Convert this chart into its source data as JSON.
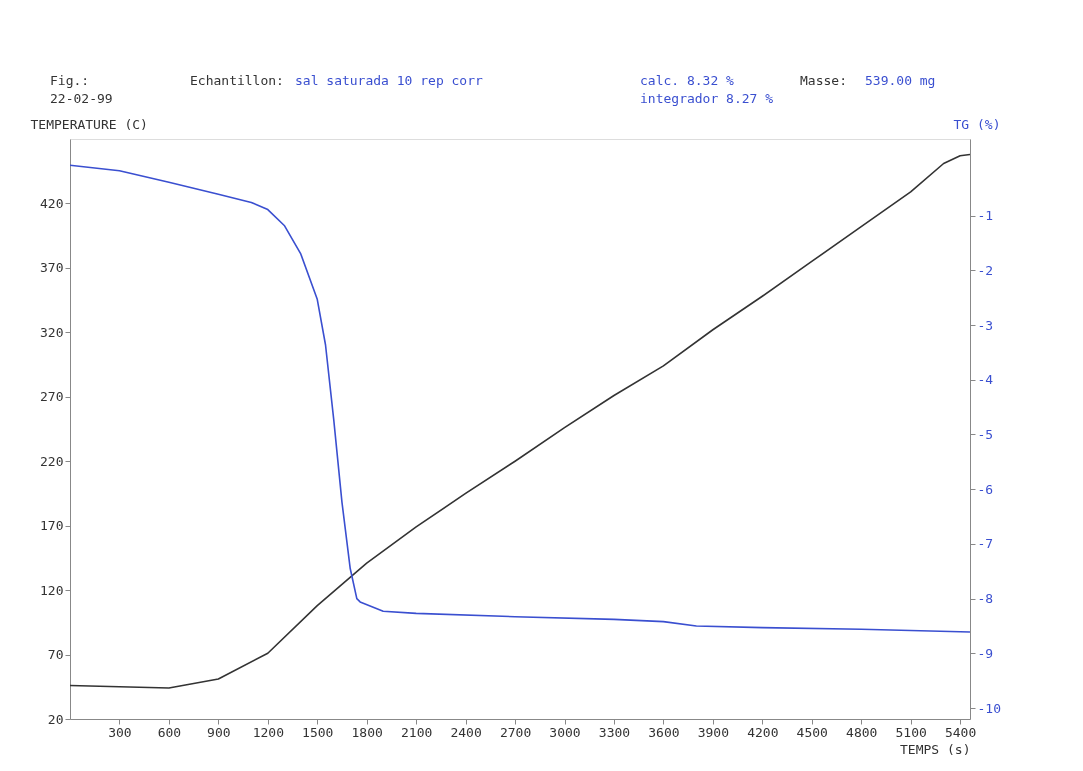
{
  "chart_data": {
    "type": "line",
    "xlabel": "TEMPS (s)",
    "ylabel": "TEMPERATURE (C)",
    "y2label": "TG (%)",
    "annotations": [
      "Fig.:",
      "22-02-99",
      "Echantillon:",
      "sal saturada 10 rep corr",
      "calc. 8.32 %",
      "integrador 8.27 %",
      "Masse:",
      "539.00 mg"
    ],
    "xlim": [
      0,
      5460
    ],
    "xticks": [
      300,
      600,
      900,
      1200,
      1500,
      1800,
      2100,
      2400,
      2700,
      3000,
      3300,
      3600,
      3900,
      4200,
      4500,
      4800,
      5100,
      5400
    ],
    "ylim": [
      20,
      470
    ],
    "yticks": [
      20,
      70,
      120,
      170,
      220,
      270,
      320,
      370,
      420
    ],
    "y2lim": [
      -10.2,
      0.4
    ],
    "y2ticks": [
      -1,
      -2,
      -3,
      -4,
      -5,
      -6,
      -7,
      -8,
      -9,
      -10
    ],
    "grid": false,
    "marker": "none",
    "line_style": "solid",
    "series": [
      {
        "color": "#333333",
        "type": "line",
        "x": [
          0,
          300,
          600,
          900,
          1200,
          1500,
          1800,
          2100,
          2400,
          2700,
          3000,
          3300,
          3600,
          3900,
          4200,
          4500,
          4800,
          5100,
          5300,
          5400,
          5460
        ],
        "values": [
          46,
          45,
          44,
          51,
          71,
          108,
          141,
          169,
          195,
          220,
          246,
          271,
          294,
          322,
          348,
          375,
          402,
          429,
          451,
          457,
          458
        ]
      },
      {
        "color": "#3a4fd0",
        "type": "line",
        "axis": "y2",
        "x": [
          0,
          300,
          600,
          900,
          1100,
          1200,
          1300,
          1400,
          1500,
          1550,
          1600,
          1650,
          1700,
          1740,
          1760,
          1900,
          2100,
          2700,
          3300,
          3600,
          3800,
          4200,
          4800,
          5460
        ],
        "values": [
          -0.08,
          -0.18,
          -0.39,
          -0.61,
          -0.76,
          -0.89,
          -1.18,
          -1.7,
          -2.53,
          -3.36,
          -4.73,
          -6.24,
          -7.45,
          -8.0,
          -8.06,
          -8.23,
          -8.27,
          -8.33,
          -8.38,
          -8.42,
          -8.5,
          -8.53,
          -8.56,
          -8.61
        ]
      }
    ]
  }
}
